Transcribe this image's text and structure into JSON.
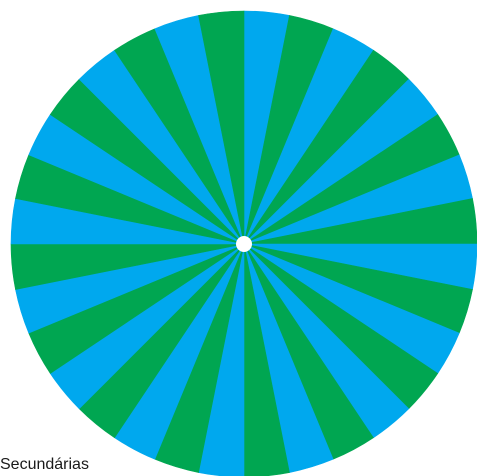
{
  "wheel": {
    "segment_count": 32,
    "colors": {
      "blue": "#00A8EE",
      "green": "#00A651",
      "center": "#ffffff"
    },
    "start_color": "blue"
  },
  "caption": {
    "text": "Secundárias"
  }
}
